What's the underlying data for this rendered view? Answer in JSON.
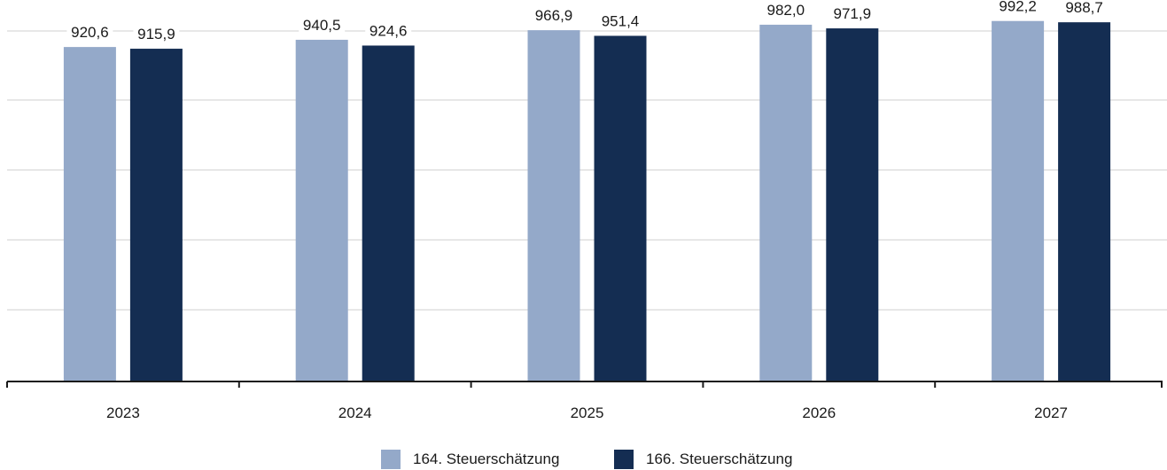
{
  "chart_data": {
    "type": "bar",
    "title": "",
    "xlabel": "",
    "ylabel": "",
    "categories": [
      "2023",
      "2024",
      "2025",
      "2026",
      "2027"
    ],
    "series": [
      {
        "name": "164. Steuerschätzung",
        "color": "#94a9c9",
        "values": [
          920.6,
          940.5,
          966.9,
          982.0,
          992.2
        ],
        "labels": [
          "920,6",
          "940,5",
          "966,9",
          "982,0",
          "992,2"
        ]
      },
      {
        "name": "166. Steuerschätzung",
        "color": "#142d52",
        "values": [
          915.9,
          924.6,
          951.4,
          971.9,
          988.7
        ],
        "labels": [
          "915,9",
          "924,6",
          "951,4",
          "971,9",
          "988,7"
        ]
      }
    ],
    "ylim": [
      0,
      1050
    ],
    "grid": true,
    "legend_position": "bottom-center"
  },
  "legend": {
    "items": [
      {
        "label": "164. Steuerschätzung",
        "color": "#94a9c9"
      },
      {
        "label": "166. Steuerschätzung",
        "color": "#142d52"
      }
    ]
  }
}
